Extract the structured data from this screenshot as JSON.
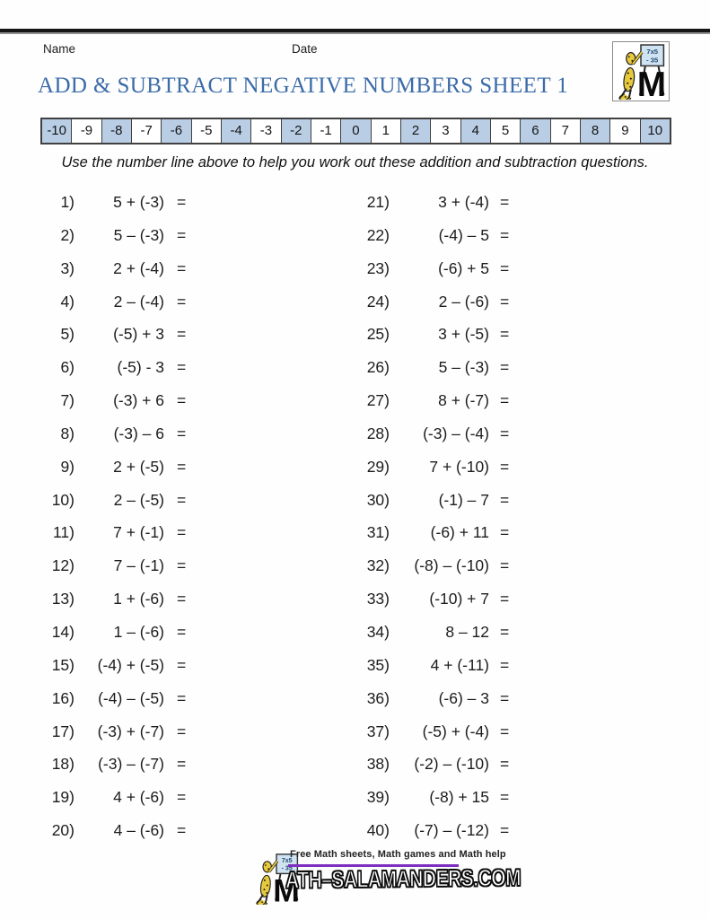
{
  "colors": {
    "title_blue": "#3B6BA8",
    "numberline_shaded": "#B9CDE5",
    "footer_purple": "#7D2FC0",
    "top_rule_black": "#161616"
  },
  "header": {
    "name_label": "Name",
    "date_label": "Date"
  },
  "title": "ADD & SUBTRACT NEGATIVE NUMBERS SHEET 1",
  "corner_logo": {
    "icon": "salamander-easel-icon",
    "board_line1": "7x5",
    "board_line2": "- 35",
    "m_letter": "M"
  },
  "number_line": {
    "values": [
      "-10",
      "-9",
      "-8",
      "-7",
      "-6",
      "-5",
      "-4",
      "-3",
      "-2",
      "-1",
      "0",
      "1",
      "2",
      "3",
      "4",
      "5",
      "6",
      "7",
      "8",
      "9",
      "10"
    ]
  },
  "instruction": "Use the number line above to help you work out these addition and subtraction questions.",
  "questions": {
    "equals_sign": "=",
    "left": [
      {
        "label": "1)",
        "expr": "5 + (-3)"
      },
      {
        "label": "2)",
        "expr": "5 – (-3)"
      },
      {
        "label": "3)",
        "expr": "2 + (-4)"
      },
      {
        "label": "4)",
        "expr": "2 – (-4)"
      },
      {
        "label": "5)",
        "expr": "(-5) + 3"
      },
      {
        "label": "6)",
        "expr": "(-5) - 3"
      },
      {
        "label": "7)",
        "expr": "(-3) + 6"
      },
      {
        "label": "8)",
        "expr": "(-3) – 6"
      },
      {
        "label": "9)",
        "expr": "2 + (-5)"
      },
      {
        "label": "10)",
        "expr": "2 – (-5)"
      },
      {
        "label": "11)",
        "expr": "7 + (-1)"
      },
      {
        "label": "12)",
        "expr": "7 – (-1)"
      },
      {
        "label": "13)",
        "expr": "1 + (-6)"
      },
      {
        "label": "14)",
        "expr": "1 – (-6)"
      },
      {
        "label": "15)",
        "expr": "(-4) + (-5)"
      },
      {
        "label": "16)",
        "expr": "(-4) – (-5)"
      },
      {
        "label": "17)",
        "expr": "(-3) + (-7)"
      },
      {
        "label": "18)",
        "expr": "(-3) – (-7)"
      },
      {
        "label": "19)",
        "expr": "4 + (-6)"
      },
      {
        "label": "20)",
        "expr": "4 – (-6)"
      }
    ],
    "right": [
      {
        "label": "21)",
        "expr": "3 + (-4)"
      },
      {
        "label": "22)",
        "expr": "(-4) – 5"
      },
      {
        "label": "23)",
        "expr": "(-6) + 5"
      },
      {
        "label": "24)",
        "expr": "2 – (-6)"
      },
      {
        "label": "25)",
        "expr": "3 + (-5)"
      },
      {
        "label": "26)",
        "expr": "5 – (-3)"
      },
      {
        "label": "27)",
        "expr": "8 + (-7)"
      },
      {
        "label": "28)",
        "expr": "(-3) – (-4)"
      },
      {
        "label": "29)",
        "expr": "7 + (-10)"
      },
      {
        "label": "30)",
        "expr": "(-1) – 7"
      },
      {
        "label": "31)",
        "expr": "(-6) + 11"
      },
      {
        "label": "32)",
        "expr": "(-8) – (-10)"
      },
      {
        "label": "33)",
        "expr": "(-10) + 7"
      },
      {
        "label": "34)",
        "expr": "8 – 12"
      },
      {
        "label": "35)",
        "expr": "4 + (-11)"
      },
      {
        "label": "36)",
        "expr": "(-6) – 3"
      },
      {
        "label": "37)",
        "expr": "(-5) + (-4)"
      },
      {
        "label": "38)",
        "expr": "(-2) – (-10)"
      },
      {
        "label": "39)",
        "expr": "(-8) + 15"
      },
      {
        "label": "40)",
        "expr": "(-7) – (-12)"
      }
    ]
  },
  "footer": {
    "tagline": "Free Math sheets, Math games and Math help",
    "wordmark_m": "M",
    "wordmark_rest": "ATH–SALAMANDERS.COM"
  }
}
